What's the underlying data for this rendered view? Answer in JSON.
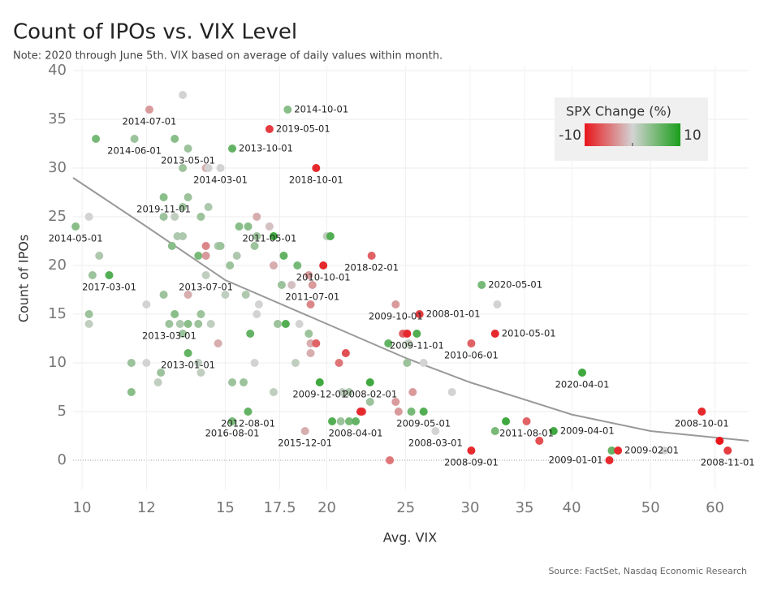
{
  "chart_data": {
    "type": "scatter",
    "title": "Count of IPOs vs. VIX Level",
    "subtitle": "Note: 2020 through June 5th. VIX based on average of daily values within month.",
    "x_label": "Avg. VIX",
    "y_label": "Count of IPOs",
    "source": "Source: FactSet, Nasdaq Economic Research",
    "x_log": true,
    "grid": true,
    "xlim": [
      9.75,
      66
    ],
    "ylim": [
      -3,
      40.5
    ],
    "xticks": [
      10,
      12,
      15,
      17.5,
      20,
      25,
      30,
      35,
      40,
      50,
      60
    ],
    "yticks": [
      0,
      5,
      10,
      15,
      20,
      25,
      30,
      35,
      40
    ],
    "color_scale": {
      "title": "SPX Change (%)",
      "min": -10,
      "max": 10,
      "colors": [
        "#e8161b",
        "#d3d3d3",
        "#1a9e1a"
      ]
    },
    "x": [
      13.3,
      12.1,
      17.9,
      17.0,
      10.4,
      11.6,
      13.0,
      13.5,
      15.3,
      13.3,
      14.2,
      14.3,
      14.8,
      19.4,
      12.6,
      13.5,
      10.2,
      12.6,
      13.0,
      13.3,
      14.0,
      14.3,
      15.6,
      16.0,
      16.4,
      17.0,
      9.82,
      10.5,
      16.4,
      17.2,
      20.0,
      20.2,
      13.1,
      13.3,
      12.9,
      14.2,
      14.7,
      14.8,
      16.3,
      10.3,
      10.8,
      13.9,
      14.2,
      15.5,
      17.7,
      18.4,
      19.8,
      22.7,
      15.2,
      17.2,
      14.2,
      19.0,
      17.6,
      18.1,
      19.2,
      12.6,
      13.5,
      15.0,
      15.9,
      16.5,
      12.0,
      19.1,
      24.3,
      31.0,
      32.4,
      26.0,
      10.2,
      13.0,
      14.0,
      16.4,
      12.8,
      13.2,
      13.5,
      13.9,
      14.4,
      10.2,
      17.4,
      17.8,
      18.5,
      13.3,
      16.1,
      19.0,
      24.8,
      25.1,
      25.8,
      32.2,
      13.5,
      14.7,
      19.1,
      19.4,
      19.1,
      21.1,
      23.8,
      25.2,
      30.1,
      11.5,
      12.0,
      13.9,
      16.3,
      18.3,
      20.7,
      25.1,
      26.3,
      12.5,
      14.0,
      12.4,
      15.3,
      15.8,
      19.6,
      22.6,
      11.5,
      17.2,
      20.9,
      21.3,
      25.5,
      28.5,
      41.2,
      16.0,
      22.1,
      22.6,
      24.3,
      24.5,
      25.4,
      26.3,
      15.3,
      20.3,
      20.8,
      21.3,
      21.7,
      22.0,
      18.8,
      27.2,
      32.2,
      33.2,
      35.2,
      36.5,
      38.0,
      30.1,
      23.9,
      44.8,
      45.6,
      44.5,
      52.0,
      57.8,
      60.8,
      62.2
    ],
    "values": [
      37.5,
      36,
      36,
      34,
      33,
      33,
      33,
      32,
      32,
      30,
      30,
      30,
      30,
      30,
      27,
      27,
      25,
      25,
      25,
      26,
      25,
      26,
      24,
      24,
      25,
      24,
      24,
      21,
      23,
      23,
      23,
      23,
      23,
      23,
      22,
      22,
      22,
      22,
      22,
      19,
      19,
      21,
      21,
      21,
      21,
      20,
      20,
      21,
      20,
      20,
      19,
      19,
      18,
      18,
      18,
      17,
      17,
      17,
      17,
      16,
      16,
      16,
      16,
      18,
      16,
      15,
      15,
      15,
      15,
      15,
      14,
      14,
      14,
      14,
      14,
      14,
      14,
      14,
      14,
      13,
      13,
      13,
      13,
      13,
      13,
      13,
      11,
      12,
      12,
      12,
      11,
      11,
      12,
      12,
      12,
      10,
      10,
      10,
      10,
      10,
      10,
      10,
      10,
      9,
      9,
      8,
      8,
      8,
      8,
      8,
      7,
      7,
      7,
      7,
      7,
      7,
      9,
      5,
      5,
      6,
      6,
      5,
      5,
      5,
      4,
      4,
      4,
      4,
      4,
      5,
      3,
      3,
      3,
      4,
      4,
      2,
      3,
      1,
      0,
      1,
      1,
      0,
      1,
      5,
      2,
      1
    ],
    "spx_change": [
      0,
      -3,
      4,
      -8,
      5,
      3,
      4,
      3,
      6,
      3,
      -2,
      0,
      0,
      -9,
      4,
      3,
      0,
      3,
      1,
      3,
      3,
      2,
      4,
      4,
      -2,
      -1,
      4,
      2,
      3,
      8,
      1,
      7,
      2,
      2,
      4,
      -4,
      2,
      3,
      3,
      3,
      7,
      5,
      -3,
      2,
      6,
      5,
      -9,
      -6,
      3,
      -2,
      1,
      -3,
      3,
      -1,
      -3,
      3,
      -2,
      1,
      2,
      0,
      0,
      -4,
      -3,
      5,
      0,
      -8,
      3,
      4,
      3,
      0,
      3,
      2,
      4,
      3,
      1,
      1,
      3,
      7,
      0,
      3,
      6,
      3,
      -6,
      -9,
      7,
      -9,
      6,
      -2,
      -2,
      -6,
      -2,
      -7,
      6,
      1,
      -6,
      3,
      0,
      1,
      0,
      1,
      -5,
      3,
      0,
      3,
      1,
      1,
      3,
      3,
      8,
      8,
      4,
      1,
      1,
      2,
      -3,
      0,
      8,
      6,
      -8,
      3,
      -3,
      -3,
      5,
      7,
      5,
      7,
      3,
      5,
      6,
      -9,
      -2,
      0,
      5,
      8,
      -6,
      -7,
      8,
      -9,
      -5,
      6,
      -9,
      -9,
      0,
      -9,
      -10,
      -8
    ],
    "point_labels": [
      null,
      "2014-07-01",
      "2014-10-01",
      "2019-05-01",
      null,
      "2014-06-01",
      null,
      "2013-05-01",
      "2013-10-01",
      null,
      null,
      null,
      "2014-03-01",
      "2018-10-01",
      "2019-11-01",
      null,
      null,
      null,
      null,
      null,
      null,
      null,
      null,
      null,
      null,
      "2011-05-01",
      "2014-05-01",
      null,
      null,
      null,
      null,
      null,
      null,
      null,
      null,
      null,
      null,
      null,
      null,
      null,
      "2017-03-01",
      null,
      null,
      null,
      null,
      null,
      "2010-10-01",
      "2018-02-01",
      null,
      null,
      "2013-07-01",
      null,
      null,
      null,
      "2011-07-01",
      null,
      null,
      null,
      null,
      null,
      null,
      null,
      "2009-10-01",
      "2020-05-01",
      null,
      "2008-01-01",
      null,
      null,
      null,
      null,
      "2013-03-01",
      null,
      null,
      null,
      null,
      null,
      null,
      null,
      null,
      null,
      null,
      null,
      null,
      null,
      "2009-11-01",
      "2010-05-01",
      "2013-01-01",
      null,
      null,
      null,
      null,
      null,
      null,
      null,
      "2010-06-01",
      null,
      null,
      null,
      null,
      null,
      null,
      null,
      null,
      null,
      null,
      null,
      null,
      null,
      "2009-12-01",
      "2008-02-01",
      null,
      null,
      null,
      null,
      null,
      null,
      "2020-04-01",
      "2012-08-01",
      null,
      null,
      null,
      null,
      null,
      "2009-05-01",
      "2016-08-01",
      null,
      null,
      null,
      "2008-04-01",
      null,
      "2015-12-01",
      "2008-03-01",
      null,
      null,
      "2011-08-01",
      null,
      "2009-04-01",
      "2008-09-01",
      null,
      null,
      "2009-02-01",
      "2009-01-01",
      null,
      "2008-10-01",
      null,
      "2008-11-01"
    ],
    "trend": {
      "color": "#999999",
      "x": [
        9.75,
        12,
        15,
        20,
        25,
        30,
        40,
        50,
        66
      ],
      "values": [
        29,
        24,
        18.5,
        14,
        10.5,
        8,
        4.7,
        3,
        2
      ]
    }
  }
}
